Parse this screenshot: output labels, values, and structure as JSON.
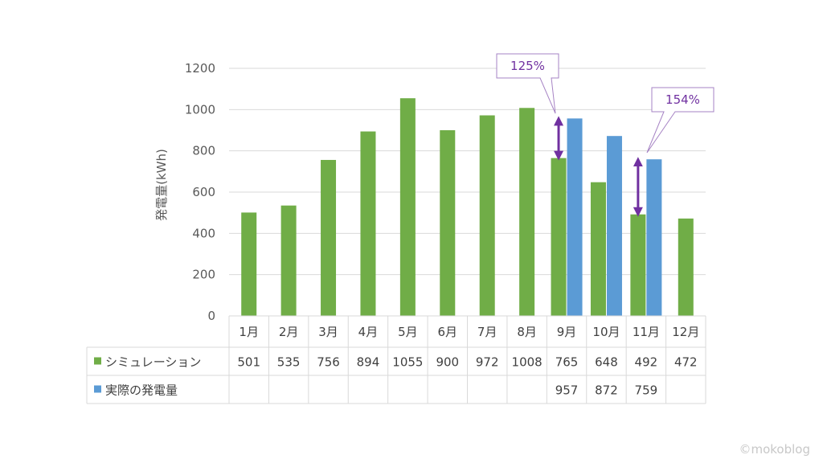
{
  "chart_data": {
    "type": "bar",
    "ylabel": "発電量(kWh)",
    "ylim": [
      0,
      1200
    ],
    "yticks": [
      0,
      200,
      400,
      600,
      800,
      1000,
      1200
    ],
    "grid": true,
    "categories": [
      "1月",
      "2月",
      "3月",
      "4月",
      "5月",
      "6月",
      "7月",
      "8月",
      "9月",
      "10月",
      "11月",
      "12月"
    ],
    "series": [
      {
        "name": "シミュレーション",
        "color": "#70ad47",
        "values": [
          501,
          535,
          756,
          894,
          1055,
          900,
          972,
          1008,
          765,
          648,
          492,
          472
        ]
      },
      {
        "name": "実際の発電量",
        "color": "#5b9bd5",
        "values": [
          null,
          null,
          null,
          null,
          null,
          null,
          null,
          null,
          957,
          872,
          759,
          null
        ]
      }
    ],
    "table": {
      "rows": [
        [
          "501",
          "535",
          "756",
          "894",
          "1055",
          "900",
          "972",
          "1008",
          "765",
          "648",
          "492",
          "472"
        ],
        [
          "",
          "",
          "",
          "",
          "",
          "",
          "",
          "",
          "957",
          "872",
          "759",
          ""
        ]
      ]
    },
    "annotations": [
      {
        "text": "125%",
        "category_index": 8,
        "from": 765,
        "to": 957
      },
      {
        "text": "154%",
        "category_index": 10,
        "from": 492,
        "to": 759
      }
    ],
    "annotation_color": "#7030a0"
  },
  "watermark": "©mokoblog"
}
